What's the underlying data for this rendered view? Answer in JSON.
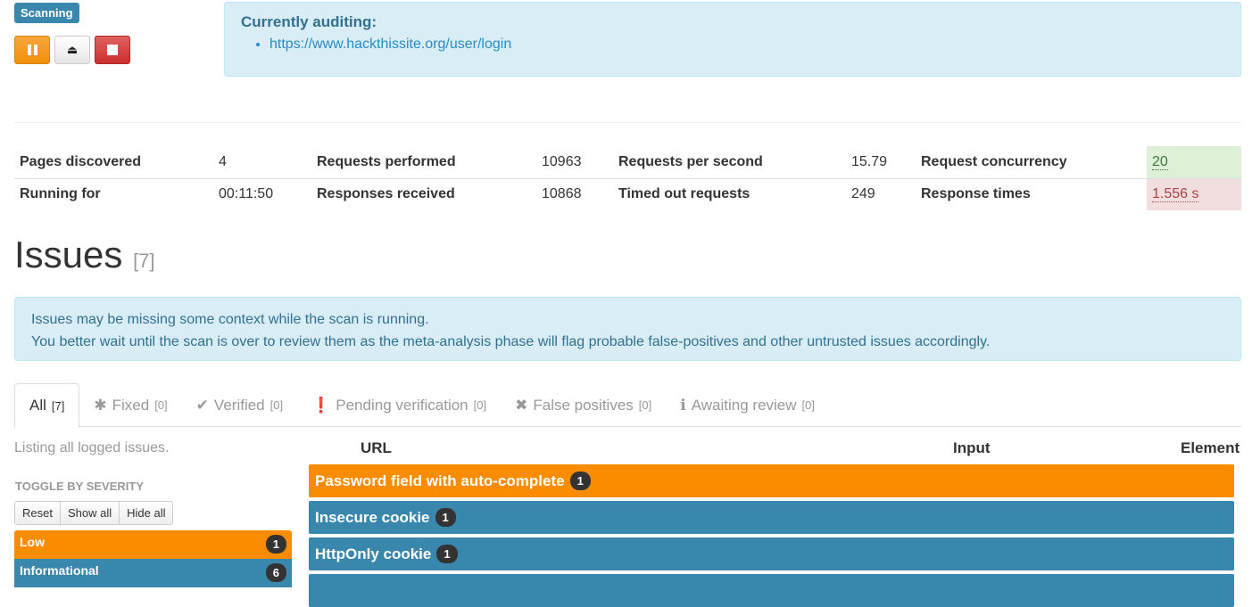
{
  "status": {
    "label": "Scanning"
  },
  "controls": {
    "pause": "pause-icon",
    "eject": "eject-icon",
    "stop": "stop-icon"
  },
  "auditing": {
    "title": "Currently auditing:",
    "urls": [
      "https://www.hackthissite.org/user/login"
    ]
  },
  "stats": [
    [
      {
        "k": "Pages discovered",
        "v": "4"
      },
      {
        "k": "Requests performed",
        "v": "10963"
      },
      {
        "k": "Requests per second",
        "v": "15.79"
      },
      {
        "k": "Request concurrency",
        "v": "20"
      }
    ],
    [
      {
        "k": "Running for",
        "v": "00:11:50"
      },
      {
        "k": "Responses received",
        "v": "10868"
      },
      {
        "k": "Timed out requests",
        "v": "249"
      },
      {
        "k": "Response times",
        "v": "1.556 s"
      }
    ]
  ],
  "issues": {
    "title": "Issues",
    "count": "[7]"
  },
  "notice": {
    "line1": "Issues may be missing some context while the scan is running.",
    "line2": "You better wait until the scan is over to review them as the meta-analysis phase will flag probable false-positives and other untrusted issues accordingly."
  },
  "tabs": [
    {
      "label": "All",
      "count": "[7]",
      "icon": ""
    },
    {
      "label": "Fixed",
      "count": "[0]",
      "icon": "✱"
    },
    {
      "label": "Verified",
      "count": "[0]",
      "icon": "✔"
    },
    {
      "label": "Pending verification",
      "count": "[0]",
      "icon": "❗"
    },
    {
      "label": "False positives",
      "count": "[0]",
      "icon": "✖"
    },
    {
      "label": "Awaiting review",
      "count": "[0]",
      "icon": "ℹ"
    }
  ],
  "listing": "Listing all logged issues.",
  "columns": {
    "url": "URL",
    "input": "Input",
    "element": "Element"
  },
  "severity": {
    "title": "TOGGLE BY SEVERITY",
    "reset": "Reset",
    "show_all": "Show all",
    "hide_all": "Hide all",
    "items": [
      {
        "label": "Low",
        "count": "1",
        "color": "#fb8c00"
      },
      {
        "label": "Informational",
        "count": "6",
        "color": "#3a87ad"
      }
    ]
  },
  "issue_list": [
    {
      "name": "Password field with auto-complete",
      "count": "1",
      "color": "#fb8c00"
    },
    {
      "name": "Insecure cookie",
      "count": "1",
      "color": "#3a87ad"
    },
    {
      "name": "HttpOnly cookie",
      "count": "1",
      "color": "#3a87ad"
    }
  ]
}
